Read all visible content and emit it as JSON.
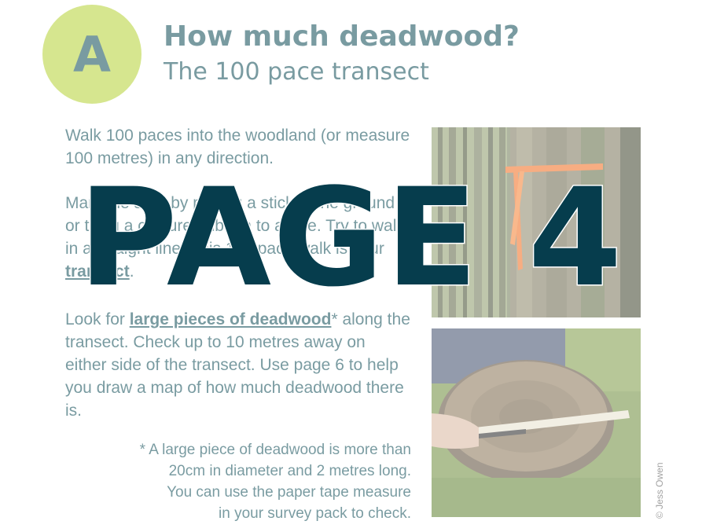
{
  "badge": {
    "letter": "A",
    "color": "#b5d334"
  },
  "header": {
    "title": "How much deadwood?",
    "subtitle": "The 100 pace transect"
  },
  "body": {
    "paragraph1": "Walk 100 paces into the woodland (or measure 100 metres) in any direction.",
    "paragraph2": {
      "text": "Mark the start by putting a stick in the ground or tying a coloured ribbon to a tree. Try to walk in a straight line. This 100 pace walk is your ",
      "emphasis": "transect",
      "end": "."
    },
    "paragraph3": {
      "prefix": "Look for ",
      "emphasis": "large pieces of deadwood",
      "suffix": "* along the transect. Check up to 10 metres away on either side of the transect. Use page 6 to help you draw a map of how much deadwood there is."
    },
    "footnote": [
      "* A large piece of deadwood is more than",
      "20cm in diameter and 2 metres long.",
      "You can use the paper tape measure",
      "in your survey pack to check."
    ]
  },
  "photos": {
    "top": "tree-trunk-with-orange-ribbon",
    "bottom": "log-measured-with-tape"
  },
  "credit": "© Jess Owen",
  "overlay": {
    "text": "PAGE 4",
    "color": "#063d4d"
  },
  "colors": {
    "text": "#0d4a55",
    "accent": "#b5d334"
  }
}
